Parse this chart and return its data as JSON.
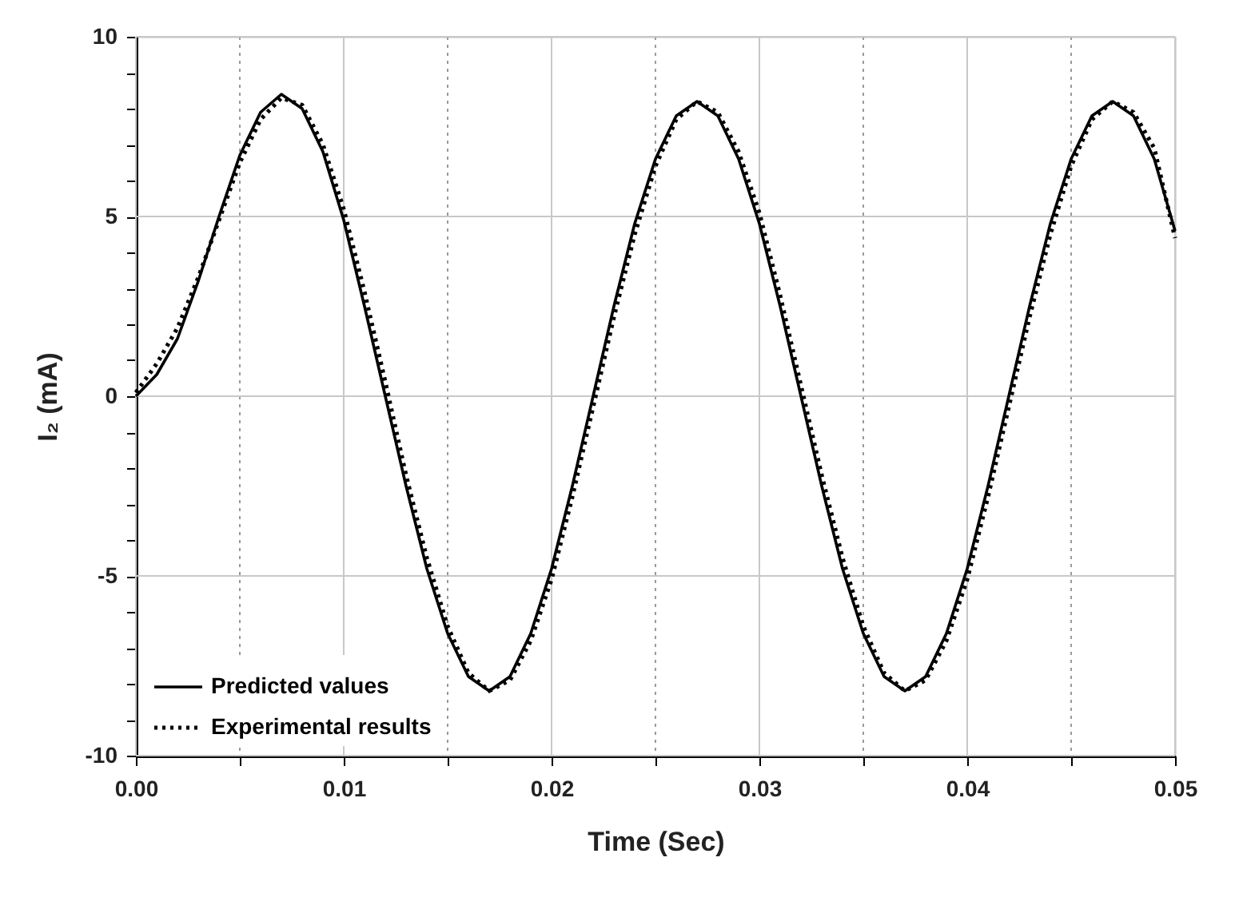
{
  "chart_data": {
    "type": "line",
    "xlabel": "Time (Sec)",
    "ylabel": "I₂ (mA)",
    "x": [
      0,
      0.001,
      0.002,
      0.003,
      0.004,
      0.005,
      0.006,
      0.007,
      0.008,
      0.009,
      0.01,
      0.011,
      0.012,
      0.013,
      0.014,
      0.015,
      0.016,
      0.017,
      0.018,
      0.019,
      0.02,
      0.021,
      0.022,
      0.023,
      0.024,
      0.025,
      0.026,
      0.027,
      0.028,
      0.029,
      0.03,
      0.031,
      0.032,
      0.033,
      0.034,
      0.035,
      0.036,
      0.037,
      0.038,
      0.039,
      0.04,
      0.041,
      0.042,
      0.043,
      0.044,
      0.045,
      0.046,
      0.047,
      0.048,
      0.049,
      0.05
    ],
    "series": [
      {
        "name": "Predicted values",
        "color": "#000000",
        "line_style": "solid",
        "values": [
          0,
          0.6,
          1.6,
          3.2,
          5.0,
          6.7,
          7.9,
          8.4,
          8.0,
          6.8,
          4.9,
          2.5,
          0,
          -2.5,
          -4.8,
          -6.6,
          -7.8,
          -8.2,
          -7.8,
          -6.6,
          -4.8,
          -2.5,
          0,
          2.5,
          4.8,
          6.6,
          7.8,
          8.2,
          7.8,
          6.6,
          4.8,
          2.5,
          0,
          -2.5,
          -4.8,
          -6.6,
          -7.8,
          -8.2,
          -7.8,
          -6.6,
          -4.8,
          -2.5,
          0,
          2.5,
          4.8,
          6.6,
          7.8,
          8.2,
          7.8,
          6.6,
          4.6
        ]
      },
      {
        "name": "Experimental results",
        "color": "#000000",
        "line_style": "dotted",
        "values": [
          0.1,
          0.9,
          1.9,
          3.3,
          4.9,
          6.5,
          7.7,
          8.3,
          8.1,
          7.0,
          5.2,
          2.9,
          0.4,
          -2.2,
          -4.5,
          -6.4,
          -7.7,
          -8.2,
          -7.9,
          -6.8,
          -5.1,
          -2.8,
          -0.3,
          2.2,
          4.5,
          6.4,
          7.7,
          8.2,
          7.9,
          6.8,
          5.1,
          2.8,
          0.3,
          -2.2,
          -4.5,
          -6.4,
          -7.7,
          -8.2,
          -7.9,
          -6.8,
          -5.1,
          -2.8,
          -0.3,
          2.2,
          4.5,
          6.4,
          7.7,
          8.2,
          7.9,
          6.9,
          4.4
        ]
      }
    ],
    "xlim": [
      0,
      0.05
    ],
    "xticks": [
      {
        "value": 0,
        "label": "0.00"
      },
      {
        "value": 0.005,
        "label": null
      },
      0.01,
      {
        "value": 0.015,
        "label": null
      },
      0.02,
      {
        "value": 0.025,
        "label": null
      },
      0.03,
      {
        "value": 0.035,
        "label": null
      },
      0.04,
      {
        "value": 0.045,
        "label": null
      },
      0.05
    ],
    "ylim": [
      -10,
      10
    ],
    "yticks": [
      -10,
      {
        "value": -9,
        "label": null
      },
      {
        "value": -8,
        "label": null
      },
      {
        "value": -7,
        "label": null
      },
      {
        "value": -6,
        "label": null
      },
      -5,
      {
        "value": -4,
        "label": null
      },
      {
        "value": -3,
        "label": null
      },
      {
        "value": -2,
        "label": null
      },
      {
        "value": -1,
        "label": null
      },
      0,
      {
        "value": 1,
        "label": null
      },
      {
        "value": 2,
        "label": null
      },
      {
        "value": 3,
        "label": null
      },
      {
        "value": 4,
        "label": null
      },
      5,
      {
        "value": 6,
        "label": null
      },
      {
        "value": 7,
        "label": null
      },
      {
        "value": 8,
        "label": null
      },
      {
        "value": 9,
        "label": null
      },
      10
    ],
    "grid": true,
    "legend": "bottom left"
  }
}
